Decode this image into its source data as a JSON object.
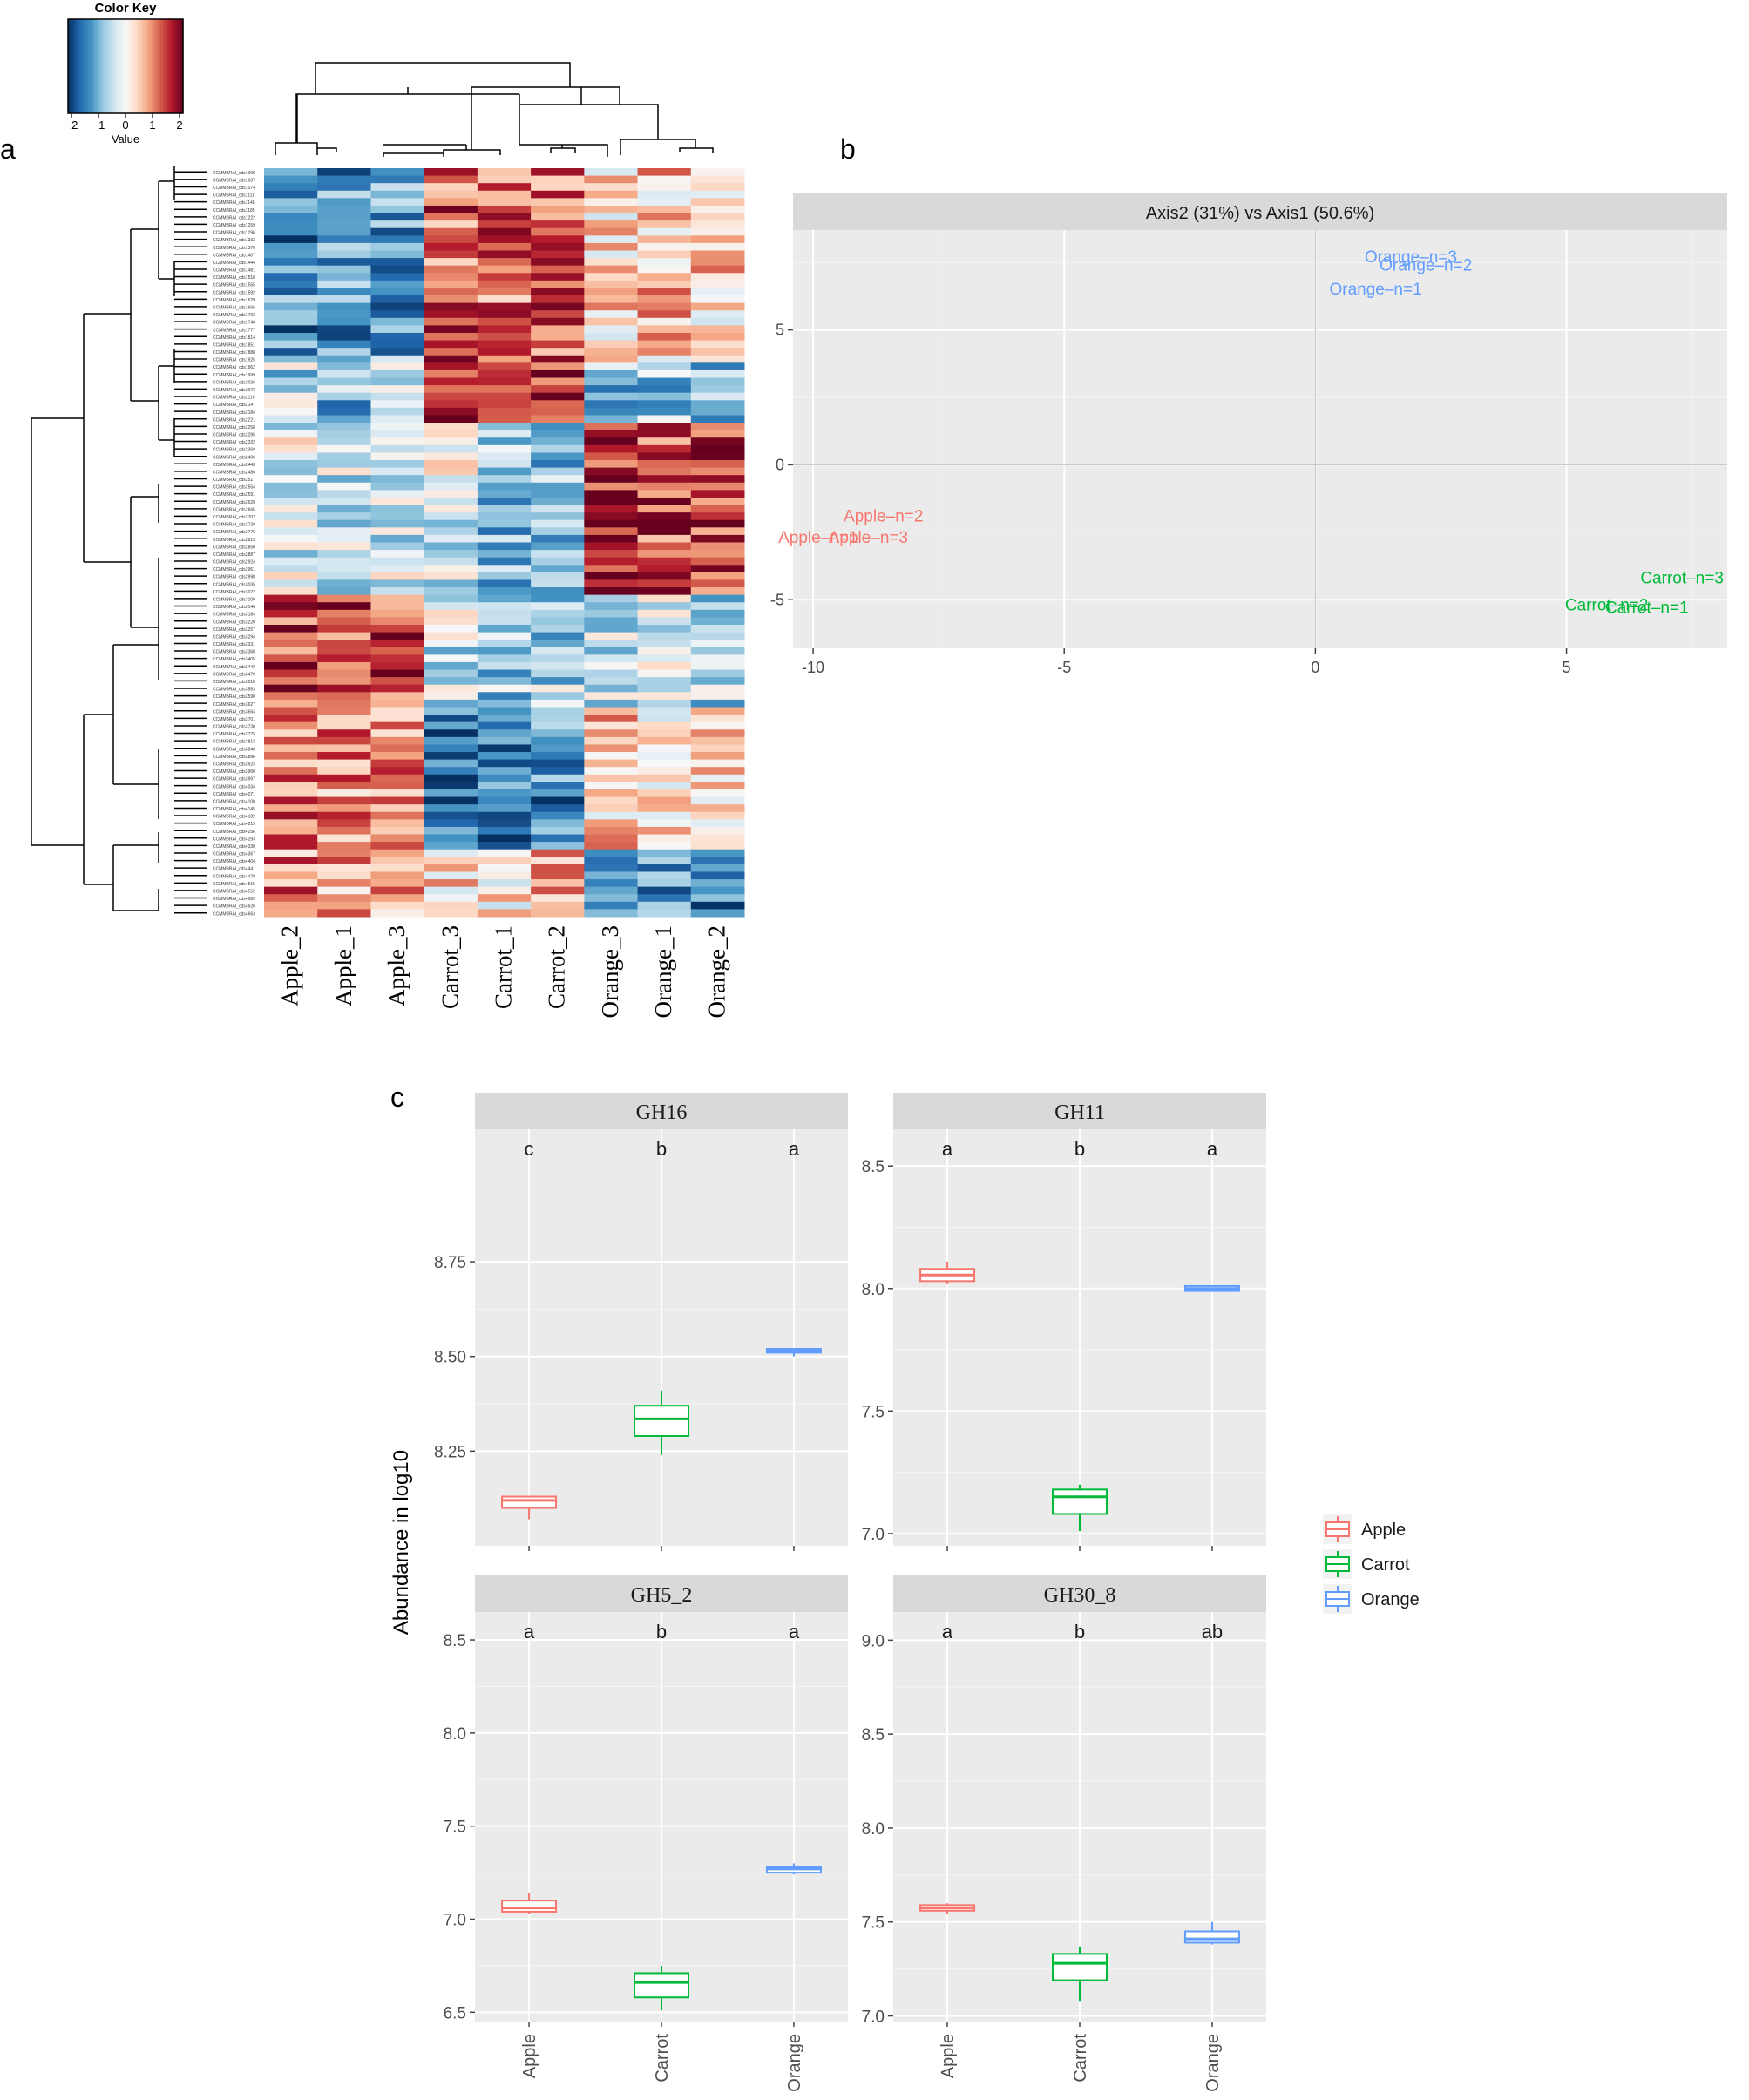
{
  "panels": {
    "a": "a",
    "b": "b",
    "c": "c"
  },
  "colors": {
    "apple": "#f8766d",
    "carrot": "#00ba38",
    "orange": "#619cff",
    "panel_bg": "#ebebeb",
    "strip_bg": "#d9d9d9",
    "grid_major": "#ffffff"
  },
  "chart_data": [
    {
      "type": "heatmap",
      "panel": "a",
      "color_key": {
        "title": "Color Key",
        "xlabel": "Value",
        "range": [
          -2,
          2
        ],
        "ticks": [
          "−2",
          "−1",
          "0",
          "1",
          "2"
        ]
      },
      "columns": [
        "Apple_2",
        "Apple_1",
        "Apple_3",
        "Carrot_3",
        "Carrot_1",
        "Carrot_2",
        "Orange_3",
        "Orange_1",
        "Orange_2"
      ],
      "blocks": [
        {
          "rows": 26,
          "values": [
            -1.3,
            -1.2,
            -1.1,
            1.2,
            1.1,
            1.2,
            0.3,
            0.5,
            0.4
          ]
        },
        {
          "rows": 8,
          "values": [
            -0.5,
            -0.9,
            -0.4,
            1.6,
            1.2,
            1.5,
            -0.9,
            -0.7,
            -1.0
          ]
        },
        {
          "rows": 23,
          "values": [
            -0.2,
            -0.4,
            -0.3,
            -0.2,
            -0.8,
            -0.7,
            1.6,
            1.3,
            1.5
          ]
        },
        {
          "rows": 15,
          "values": [
            1.4,
            1.4,
            1.3,
            -0.3,
            -0.6,
            -0.6,
            -0.4,
            -0.2,
            -0.5
          ]
        },
        {
          "rows": 19,
          "values": [
            1.1,
            0.9,
            0.9,
            -1.4,
            -1.5,
            -1.3,
            0.5,
            0.3,
            0.4
          ]
        },
        {
          "rows": 9,
          "values": [
            1.0,
            0.8,
            0.7,
            0.3,
            0.2,
            0.6,
            -1.3,
            -1.1,
            -1.2
          ]
        }
      ],
      "row_label": "CCMMBRAI_cds"
    },
    {
      "type": "scatter",
      "panel": "b",
      "title": "Axis2 (31%) vs Axis1 (50.6%)",
      "xlim": [
        -10.4,
        8.2
      ],
      "ylim": [
        -6.8,
        8.7
      ],
      "xticks": [
        -10,
        -5,
        0,
        5
      ],
      "xtick_labels": [
        "-10",
        "-5",
        "0",
        "5"
      ],
      "yticks": [
        -5,
        0,
        5
      ],
      "ytick_labels": [
        "-5",
        "0",
        "5"
      ],
      "points": [
        {
          "label": "Orange–n=3",
          "group": "Orange",
          "x": 1.9,
          "y": 7.7
        },
        {
          "label": "Orange–n=2",
          "group": "Orange",
          "x": 2.2,
          "y": 7.4
        },
        {
          "label": "Orange–n=1",
          "group": "Orange",
          "x": 1.2,
          "y": 6.5
        },
        {
          "label": "Apple–n=2",
          "group": "Apple",
          "x": -8.6,
          "y": -1.9
        },
        {
          "label": "Apple–n=1",
          "group": "Apple",
          "x": -9.9,
          "y": -2.7
        },
        {
          "label": "Apple–n=3",
          "group": "Apple",
          "x": -8.9,
          "y": -2.7
        },
        {
          "label": "Carrot–n=3",
          "group": "Carrot",
          "x": 7.3,
          "y": -4.2
        },
        {
          "label": "Carrot–n=2",
          "group": "Carrot",
          "x": 5.8,
          "y": -5.2
        },
        {
          "label": "Carrot–n=1",
          "group": "Carrot",
          "x": 6.6,
          "y": -5.3
        }
      ]
    },
    {
      "type": "box",
      "panel": "c",
      "ylabel": "Abundance in log10",
      "categories": [
        "Apple",
        "Carrot",
        "Orange"
      ],
      "legend": [
        "Apple",
        "Carrot",
        "Orange"
      ],
      "facets": [
        {
          "title": "GH16",
          "ylim": [
            8.0,
            9.1
          ],
          "yticks": [
            8.25,
            8.5,
            8.75
          ],
          "ytick_labels": [
            "8.25",
            "8.50",
            "8.75"
          ],
          "letters": [
            "c",
            "b",
            "a"
          ],
          "boxes": [
            {
              "min": 8.07,
              "q1": 8.1,
              "median": 8.12,
              "q3": 8.13,
              "max": 8.13
            },
            {
              "min": 8.24,
              "q1": 8.29,
              "median": 8.335,
              "q3": 8.37,
              "max": 8.41
            },
            {
              "min": 8.5,
              "q1": 8.51,
              "median": 8.515,
              "q3": 8.52,
              "max": 8.52
            }
          ]
        },
        {
          "title": "GH11",
          "ylim": [
            6.95,
            8.65
          ],
          "yticks": [
            7.0,
            7.5,
            8.0,
            8.5
          ],
          "ytick_labels": [
            "7.0",
            "7.5",
            "8.0",
            "8.5"
          ],
          "letters": [
            "a",
            "b",
            "a"
          ],
          "boxes": [
            {
              "min": 8.02,
              "q1": 8.03,
              "median": 8.055,
              "q3": 8.08,
              "max": 8.11
            },
            {
              "min": 7.01,
              "q1": 7.08,
              "median": 7.15,
              "q3": 7.18,
              "max": 7.2
            },
            {
              "min": 7.99,
              "q1": 7.99,
              "median": 8.0,
              "q3": 8.01,
              "max": 8.01
            }
          ]
        },
        {
          "title": "GH5_2",
          "ylim": [
            6.45,
            8.65
          ],
          "yticks": [
            6.5,
            7.0,
            7.5,
            8.0,
            8.5
          ],
          "ytick_labels": [
            "6.5",
            "7.0",
            "7.5",
            "8.0",
            "8.5"
          ],
          "letters": [
            "a",
            "b",
            "a"
          ],
          "boxes": [
            {
              "min": 7.03,
              "q1": 7.04,
              "median": 7.06,
              "q3": 7.1,
              "max": 7.14
            },
            {
              "min": 6.51,
              "q1": 6.58,
              "median": 6.66,
              "q3": 6.71,
              "max": 6.75
            },
            {
              "min": 7.24,
              "q1": 7.25,
              "median": 7.27,
              "q3": 7.28,
              "max": 7.3
            }
          ]
        },
        {
          "title": "GH30_8",
          "ylim": [
            6.97,
            9.15
          ],
          "yticks": [
            7.0,
            7.5,
            8.0,
            8.5,
            9.0
          ],
          "ytick_labels": [
            "7.0",
            "7.5",
            "8.0",
            "8.5",
            "9.0"
          ],
          "letters": [
            "a",
            "b",
            "ab"
          ],
          "boxes": [
            {
              "min": 7.54,
              "q1": 7.56,
              "median": 7.575,
              "q3": 7.59,
              "max": 7.6
            },
            {
              "min": 7.08,
              "q1": 7.19,
              "median": 7.28,
              "q3": 7.33,
              "max": 7.37
            },
            {
              "min": 7.38,
              "q1": 7.39,
              "median": 7.41,
              "q3": 7.45,
              "max": 7.5
            }
          ]
        }
      ]
    }
  ]
}
